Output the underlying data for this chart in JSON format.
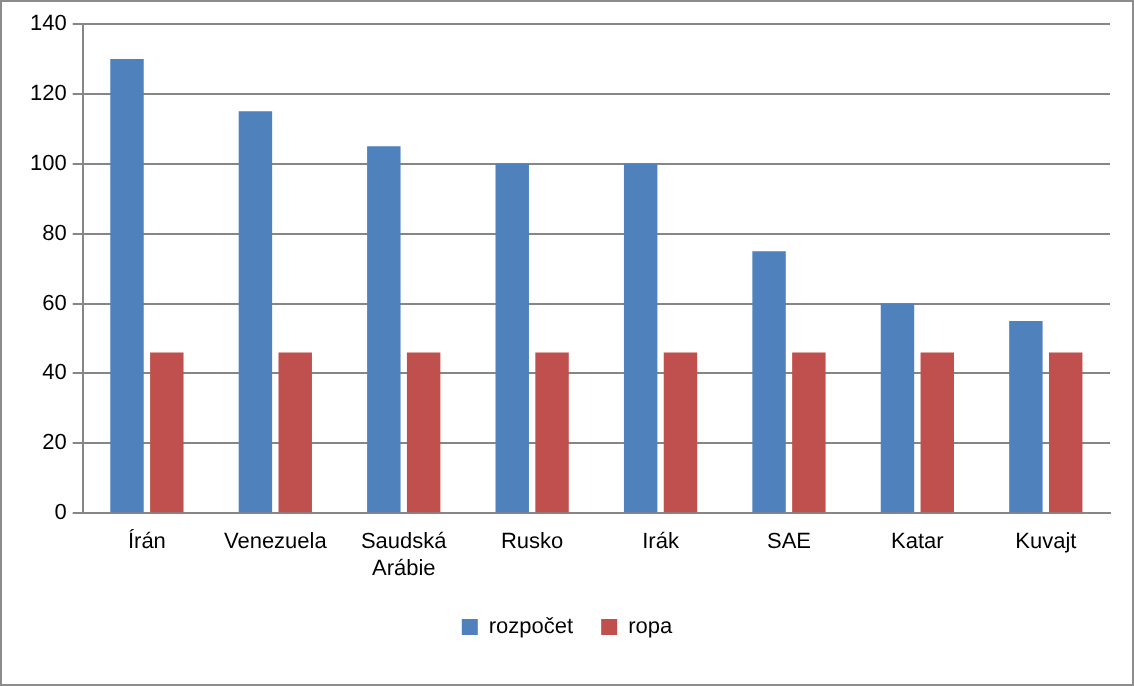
{
  "chart_data": {
    "type": "bar",
    "categories": [
      "Írán",
      "Venezuela",
      "Saudská Arábie",
      "Rusko",
      "Irák",
      "SAE",
      "Katar",
      "Kuvajt"
    ],
    "series": [
      {
        "name": "rozpočet",
        "color": "#4f81bd",
        "values": [
          130,
          115,
          105,
          100,
          100,
          75,
          60,
          55
        ]
      },
      {
        "name": "ropa",
        "color": "#c0504d",
        "values": [
          46,
          46,
          46,
          46,
          46,
          46,
          46,
          46
        ]
      }
    ],
    "ylim": [
      0,
      140
    ],
    "yticks": [
      0,
      20,
      40,
      60,
      80,
      100,
      120,
      140
    ],
    "grid": "y",
    "legend": "bottom"
  }
}
